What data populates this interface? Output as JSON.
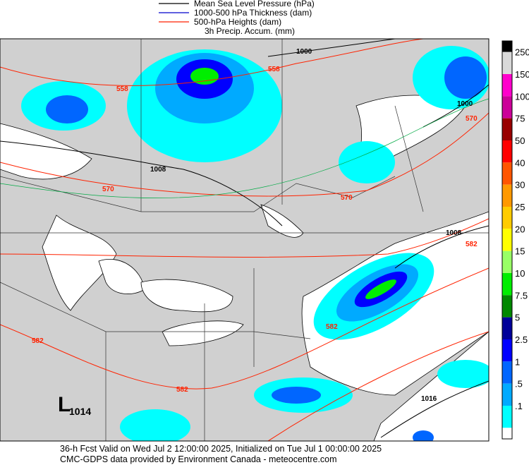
{
  "legend": [
    {
      "label": "Mean Sea Level Pressure (hPa)",
      "color": "#000000"
    },
    {
      "label": "1000-500 hPa Thickness (dam)",
      "color": "#0000cc"
    },
    {
      "label": "500-hPa Heights (dam)",
      "color": "#ff2200"
    },
    {
      "label": "3h Precip. Accum. (mm)"
    }
  ],
  "colorbar": [
    {
      "label": "250",
      "color": "#d9d9d9"
    },
    {
      "label": "150",
      "color": "#ff00cc"
    },
    {
      "label": "100",
      "color": "#cc0099"
    },
    {
      "label": "75",
      "color": "#990000"
    },
    {
      "label": "50",
      "color": "#ff0000"
    },
    {
      "label": "40",
      "color": "#ff5500"
    },
    {
      "label": "30",
      "color": "#ff9900"
    },
    {
      "label": "25",
      "color": "#ffcc00"
    },
    {
      "label": "20",
      "color": "#ffff00"
    },
    {
      "label": "15",
      "color": "#99ff66"
    },
    {
      "label": "10",
      "color": "#00ee00"
    },
    {
      "label": "7.5",
      "color": "#008800"
    },
    {
      "label": "5",
      "color": "#000099"
    },
    {
      "label": "2.5",
      "color": "#0000ff"
    },
    {
      "label": "1",
      "color": "#0066ff"
    },
    {
      "label": ".5",
      "color": "#00aaff"
    },
    {
      "label": ".1",
      "color": "#00ffff"
    }
  ],
  "contour_labels": [
    "1000",
    "558",
    "558",
    "1008",
    "570",
    "570",
    "1000",
    "570",
    "1008",
    "582",
    "582",
    "582",
    "582",
    "1016"
  ],
  "low": {
    "symbol": "L",
    "pressure": "1014"
  },
  "footer": [
    "36-h Fcst Valid on Wed Jul  2 12:00:00 2025, Initialized on Tue Jul  1 00:00:00 2025",
    "CMC-GDPS data provided by Environment Canada - meteocentre.com"
  ]
}
